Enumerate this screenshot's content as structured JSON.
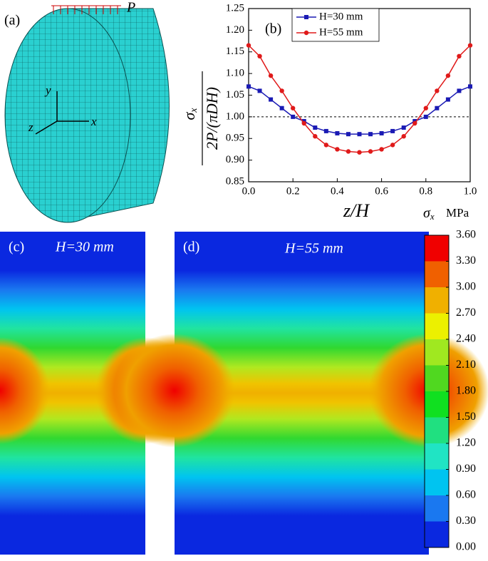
{
  "chart_data": {
    "type": "line",
    "panel_label": "(b)",
    "ylabel_numerator": "σ",
    "ylabel_subscript": "x",
    "ylabel_denominator": "2P/(πDH)",
    "xlabel": "z/H",
    "x": [
      0,
      0.05,
      0.1,
      0.15,
      0.2,
      0.25,
      0.3,
      0.35,
      0.4,
      0.45,
      0.5,
      0.55,
      0.6,
      0.65,
      0.7,
      0.75,
      0.8,
      0.85,
      0.9,
      0.95,
      1
    ],
    "series": [
      {
        "name": "H=30 mm",
        "color": "#1a1ab4",
        "marker": "square",
        "values": [
          1.07,
          1.06,
          1.04,
          1.02,
          1.0,
          0.99,
          0.975,
          0.967,
          0.962,
          0.96,
          0.96,
          0.96,
          0.962,
          0.967,
          0.975,
          0.99,
          1.0,
          1.02,
          1.04,
          1.06,
          1.07
        ]
      },
      {
        "name": "H=55 mm",
        "color": "#e01a1a",
        "marker": "circle",
        "values": [
          1.165,
          1.14,
          1.095,
          1.06,
          1.02,
          0.985,
          0.955,
          0.935,
          0.925,
          0.92,
          0.918,
          0.92,
          0.925,
          0.935,
          0.955,
          0.985,
          1.02,
          1.06,
          1.095,
          1.14,
          1.165
        ]
      }
    ],
    "reference_line": 1.0,
    "xlim": [
      0,
      1
    ],
    "xticks": [
      {
        "value": 0,
        "label": "0.0"
      },
      0.2,
      0.4,
      0.6,
      0.8,
      {
        "value": 1,
        "label": "1.0"
      }
    ],
    "ylim": [
      0.85,
      1.25
    ],
    "yticks": [
      0.85,
      {
        "value": 0.9,
        "label": "0.90"
      },
      0.95,
      {
        "value": 1.0,
        "label": "1.00"
      },
      1.05,
      {
        "value": 1.1,
        "label": "1.10"
      },
      1.15,
      {
        "value": 1.2,
        "label": "1.20"
      },
      1.25
    ],
    "legend": "upper-left"
  },
  "panel_a": {
    "label": "(a)",
    "load": "P",
    "axis_x": "x",
    "axis_y": "y",
    "axis_z": "z"
  },
  "panel_c": {
    "label": "(c)",
    "title": "H=30 mm"
  },
  "panel_d": {
    "label": "(d)",
    "title": "H=55 mm"
  },
  "colorbar": {
    "symbol": "σ",
    "subscript": "x",
    "unit": "MPa",
    "colors": [
      "#0a28e0",
      "#1a78f0",
      "#00c4f0",
      "#20e4c4",
      "#20e080",
      "#10e020",
      "#50d820",
      "#a0e820",
      "#ecf000",
      "#f0b000",
      "#f06000",
      "#f00000"
    ],
    "ticks": [
      {
        "value": 0,
        "label": "0.00"
      },
      {
        "value": 0.3,
        "label": "0.30"
      },
      {
        "value": 0.6,
        "label": "0.60"
      },
      {
        "value": 0.9,
        "label": "0.90"
      },
      {
        "value": 1.2,
        "label": "1.20"
      },
      {
        "value": 1.5,
        "label": "1.50"
      },
      {
        "value": 1.8,
        "label": "1.80"
      },
      {
        "value": 2.1,
        "label": "2.10"
      },
      {
        "value": 2.4,
        "label": "2.40"
      },
      {
        "value": 2.7,
        "label": "2.70"
      },
      {
        "value": 3.0,
        "label": "3.00"
      },
      {
        "value": 3.3,
        "label": "3.30"
      },
      {
        "value": 3.6,
        "label": "3.60"
      }
    ]
  }
}
